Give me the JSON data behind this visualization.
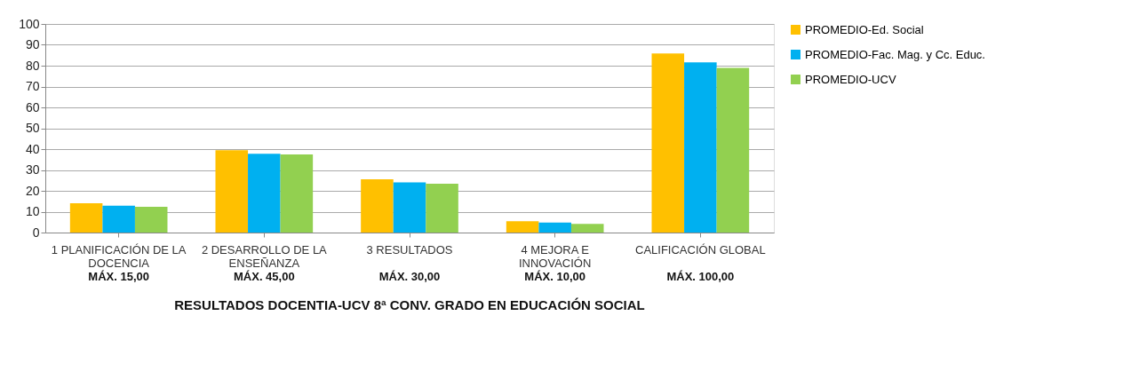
{
  "chart_data": {
    "type": "bar",
    "title": "RESULTADOS DOCENTIA-UCV 8ª CONV. GRADO EN EDUCACIÓN SOCIAL",
    "categories": [
      "1 PLANIFICACIÓN DE LA\nDOCENCIA",
      "2 DESARROLLO DE LA\nENSEÑANZA",
      "3 RESULTADOS",
      "4 MEJORA E\nINNOVACIÓN",
      "CALIFICACIÓN GLOBAL"
    ],
    "series": [
      {
        "name": "PROMEDIO-Ed. Social",
        "color": "#ffc000",
        "values": [
          14.0,
          39.5,
          25.5,
          5.4,
          85.8
        ]
      },
      {
        "name": "PROMEDIO-Fac. Mag. y Cc. Educ.",
        "color": "#00b0f0",
        "values": [
          12.9,
          37.8,
          24.0,
          4.8,
          81.6
        ]
      },
      {
        "name": "PROMEDIO-UCV",
        "color": "#92d050",
        "values": [
          12.3,
          37.4,
          23.4,
          4.2,
          78.9
        ]
      }
    ],
    "annotations": [
      "MÁX. 15,00",
      "MÁX. 45,00",
      "MÁX. 30,00",
      "MÁX. 10,00",
      "MÁX. 100,00"
    ],
    "ylim": [
      0,
      100
    ],
    "yticks": [
      0,
      10,
      20,
      30,
      40,
      50,
      60,
      70,
      80,
      90,
      100
    ],
    "grid": "y",
    "legend": "right"
  }
}
